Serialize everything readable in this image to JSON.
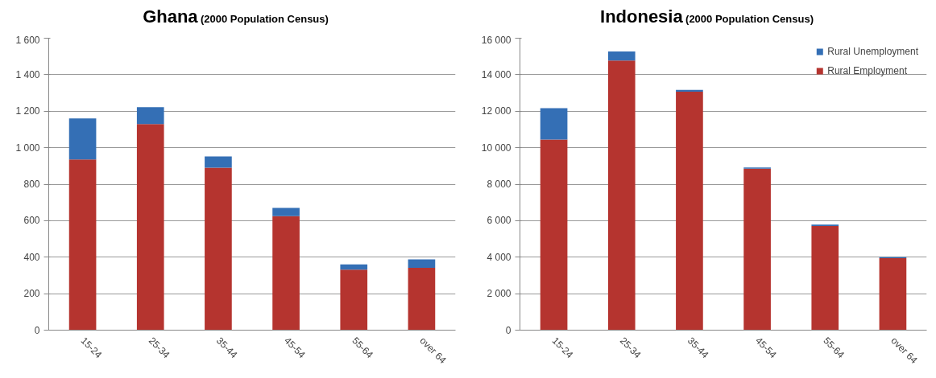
{
  "chart_data": [
    {
      "type": "bar",
      "title": "Ghana",
      "subtitle": "(2000 Population Census)",
      "stacked": true,
      "categories": [
        "15-24",
        "25-34",
        "35-44",
        "45-54",
        "55-64",
        "over 64"
      ],
      "series": [
        {
          "color": "#b5342f",
          "values": [
            935,
            1130,
            890,
            625,
            332,
            342
          ]
        },
        {
          "color": "#346fb5",
          "values": [
            225,
            92,
            62,
            45,
            28,
            46
          ]
        }
      ],
      "ylim": [
        0,
        1600
      ],
      "yticks": [
        0,
        200,
        400,
        600,
        800,
        {
          "value": 1000,
          "label": "1 000"
        },
        {
          "value": 1200,
          "label": "1 200"
        },
        {
          "value": 1400,
          "label": "1 400"
        },
        {
          "value": 1600,
          "label": "1 600"
        }
      ],
      "grid": "y",
      "legend": false
    },
    {
      "type": "bar",
      "title": "Indonesia",
      "subtitle": "(2000 Population Census)",
      "stacked": true,
      "categories": [
        "15-24",
        "25-34",
        "35-44",
        "45-54",
        "55-64",
        "over 64"
      ],
      "series": [
        {
          "name": "Rural Employment",
          "color": "#b5342f",
          "values": [
            10450,
            14780,
            13070,
            8850,
            5710,
            3940
          ]
        },
        {
          "name": "Rural Unemployment",
          "color": "#346fb5",
          "values": [
            1710,
            490,
            100,
            70,
            70,
            60
          ]
        }
      ],
      "ylim": [
        0,
        16000
      ],
      "yticks": [
        0,
        {
          "value": 2000,
          "label": "2 000"
        },
        {
          "value": 4000,
          "label": "4 000"
        },
        {
          "value": 6000,
          "label": "6 000"
        },
        {
          "value": 8000,
          "label": "8 000"
        },
        {
          "value": 10000,
          "label": "10 000"
        },
        {
          "value": 12000,
          "label": "12 000"
        },
        {
          "value": 14000,
          "label": "14 000"
        },
        {
          "value": 16000,
          "label": "16 000"
        }
      ],
      "grid": "y",
      "legend": "top right"
    }
  ]
}
